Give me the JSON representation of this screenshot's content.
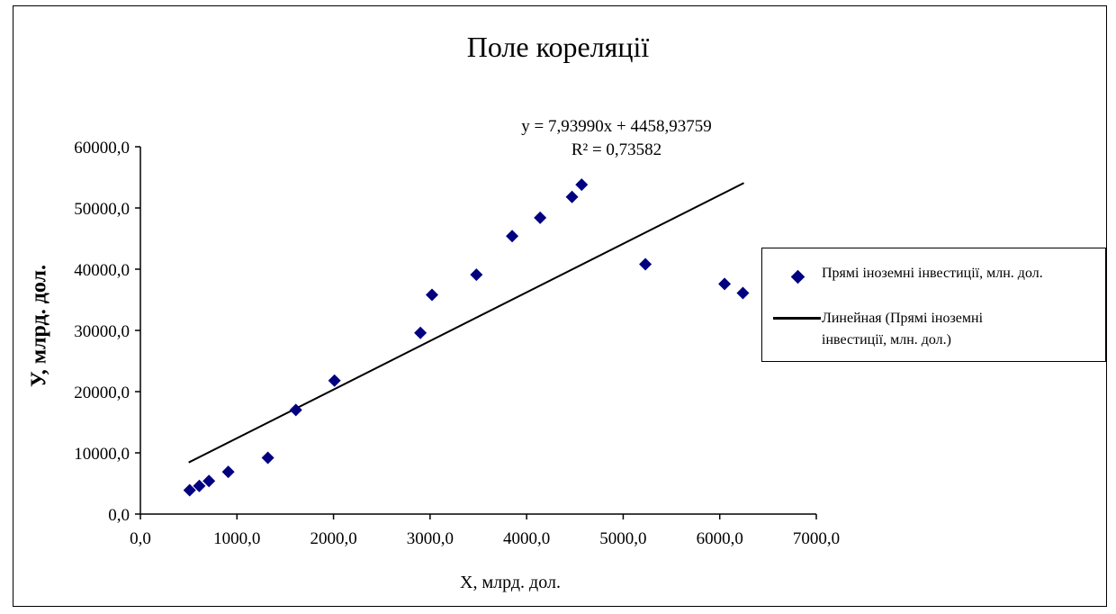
{
  "chart_data": {
    "type": "scatter",
    "title": "Поле кореляції",
    "xlabel": "X, млрд. дол.",
    "ylabel": "У, млрд. дол.",
    "xlim": [
      0,
      7000
    ],
    "ylim": [
      0,
      60000
    ],
    "x_ticks": [
      "0,0",
      "1000,0",
      "2000,0",
      "3000,0",
      "4000,0",
      "5000,0",
      "6000,0",
      "7000,0"
    ],
    "y_ticks": [
      "0,0",
      "10000,0",
      "20000,0",
      "30000,0",
      "40000,0",
      "50000,0",
      "60000,0"
    ],
    "grid": false,
    "legend_position": "right",
    "series": [
      {
        "name": "Прямі іноземні інвестиції, млн. дол.",
        "marker": "diamond",
        "color": "#000080",
        "points": [
          [
            510,
            3900
          ],
          [
            610,
            4600
          ],
          [
            710,
            5400
          ],
          [
            910,
            6900
          ],
          [
            1320,
            9200
          ],
          [
            1610,
            17000
          ],
          [
            2010,
            21800
          ],
          [
            2900,
            29600
          ],
          [
            3020,
            35800
          ],
          [
            3480,
            39100
          ],
          [
            3850,
            45400
          ],
          [
            4140,
            48400
          ],
          [
            4470,
            51800
          ],
          [
            4570,
            53800
          ],
          [
            5230,
            40800
          ],
          [
            6050,
            37600
          ],
          [
            6240,
            36100
          ]
        ]
      }
    ],
    "trendline": {
      "name": "Линейная  (Прямі іноземні інвестиції,  млн. дол.)",
      "type": "linear",
      "slope": 7.9399,
      "intercept": 4458.93759,
      "x_range": [
        500,
        6250
      ],
      "color": "#000000",
      "equation": "y = 7,93990x + 4458,93759",
      "r_squared": "R² = 0,73582"
    }
  },
  "legend": {
    "entry1": "Прямі іноземні інвестиції,  млн. дол.",
    "entry2_line1": "Линейная  (Прямі іноземні",
    "entry2_line2": "інвестиції,  млн. дол.)"
  }
}
